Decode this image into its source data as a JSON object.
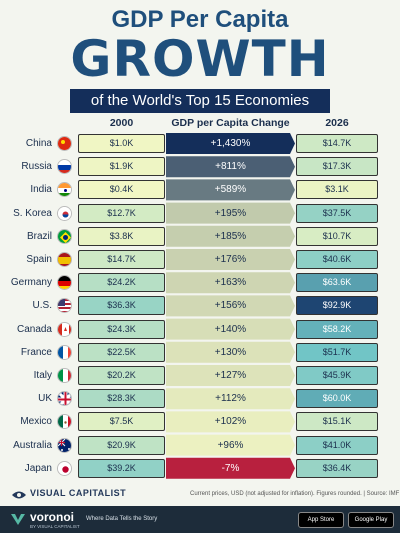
{
  "title_line1": "GDP Per Capita",
  "title_line2": "GROWTH",
  "subtitle": "of the World's Top 15 Economies",
  "headers": {
    "y2000": "2000",
    "change": "GDP per Capita Change",
    "y2026": "2026"
  },
  "chart_data": {
    "type": "table",
    "columns": [
      "2000",
      "GDP per Capita Change",
      "2026"
    ],
    "rows": [
      {
        "country": "China",
        "y2000": "$1.0K",
        "change": "+1,430%",
        "y2026": "$14.7K",
        "v2000": 1.0,
        "pct": 1430,
        "v2026": 14.7
      },
      {
        "country": "Russia",
        "y2000": "$1.9K",
        "change": "+811%",
        "y2026": "$17.3K",
        "v2000": 1.9,
        "pct": 811,
        "v2026": 17.3
      },
      {
        "country": "India",
        "y2000": "$0.4K",
        "change": "+589%",
        "y2026": "$3.1K",
        "v2000": 0.4,
        "pct": 589,
        "v2026": 3.1
      },
      {
        "country": "S. Korea",
        "y2000": "$12.7K",
        "change": "+195%",
        "y2026": "$37.5K",
        "v2000": 12.7,
        "pct": 195,
        "v2026": 37.5
      },
      {
        "country": "Brazil",
        "y2000": "$3.8K",
        "change": "+185%",
        "y2026": "$10.7K",
        "v2000": 3.8,
        "pct": 185,
        "v2026": 10.7
      },
      {
        "country": "Spain",
        "y2000": "$14.7K",
        "change": "+176%",
        "y2026": "$40.6K",
        "v2000": 14.7,
        "pct": 176,
        "v2026": 40.6
      },
      {
        "country": "Germany",
        "y2000": "$24.2K",
        "change": "+163%",
        "y2026": "$63.6K",
        "v2000": 24.2,
        "pct": 163,
        "v2026": 63.6
      },
      {
        "country": "U.S.",
        "y2000": "$36.3K",
        "change": "+156%",
        "y2026": "$92.9K",
        "v2000": 36.3,
        "pct": 156,
        "v2026": 92.9
      },
      {
        "country": "Canada",
        "y2000": "$24.3K",
        "change": "+140%",
        "y2026": "$58.2K",
        "v2000": 24.3,
        "pct": 140,
        "v2026": 58.2
      },
      {
        "country": "France",
        "y2000": "$22.5K",
        "change": "+130%",
        "y2026": "$51.7K",
        "v2000": 22.5,
        "pct": 130,
        "v2026": 51.7
      },
      {
        "country": "Italy",
        "y2000": "$20.2K",
        "change": "+127%",
        "y2026": "$45.9K",
        "v2000": 20.2,
        "pct": 127,
        "v2026": 45.9
      },
      {
        "country": "UK",
        "y2000": "$28.3K",
        "change": "+112%",
        "y2026": "$60.0K",
        "v2000": 28.3,
        "pct": 112,
        "v2026": 60.0
      },
      {
        "country": "Mexico",
        "y2000": "$7.5K",
        "change": "+102%",
        "y2026": "$15.1K",
        "v2000": 7.5,
        "pct": 102,
        "v2026": 15.1
      },
      {
        "country": "Australia",
        "y2000": "$20.9K",
        "change": "+96%",
        "y2026": "$41.0K",
        "v2000": 20.9,
        "pct": 96,
        "v2026": 41.0
      },
      {
        "country": "Japan",
        "y2000": "$39.2K",
        "change": "-7%",
        "y2026": "$36.4K",
        "v2000": 39.2,
        "pct": -7,
        "v2026": 36.4
      }
    ]
  },
  "flags": [
    "china-flag-icon",
    "russia-flag-icon",
    "india-flag-icon",
    "south-korea-flag-icon",
    "brazil-flag-icon",
    "spain-flag-icon",
    "germany-flag-icon",
    "us-flag-icon",
    "canada-flag-icon",
    "france-flag-icon",
    "italy-flag-icon",
    "uk-flag-icon",
    "mexico-flag-icon",
    "australia-flag-icon",
    "japan-flag-icon"
  ],
  "colors": {
    "navy": "#142e5a",
    "title": "#1f4f7c",
    "negative": "#b8203e",
    "light": "#f3f7c4",
    "teal": "#5fb9c1",
    "dark": "#1a3e6e"
  },
  "footer": {
    "brand": "VISUAL CAPITALIST",
    "note": "Current prices, USD (not adjusted for inflation). Figures rounded.  |  Source: IMF",
    "voronoi": "voronoi",
    "voronoi_sub": "BY VISUAL CAPITALIST",
    "tagline": "Where Data Tells the Story",
    "app_store": "App Store",
    "google_play": "Google Play"
  }
}
